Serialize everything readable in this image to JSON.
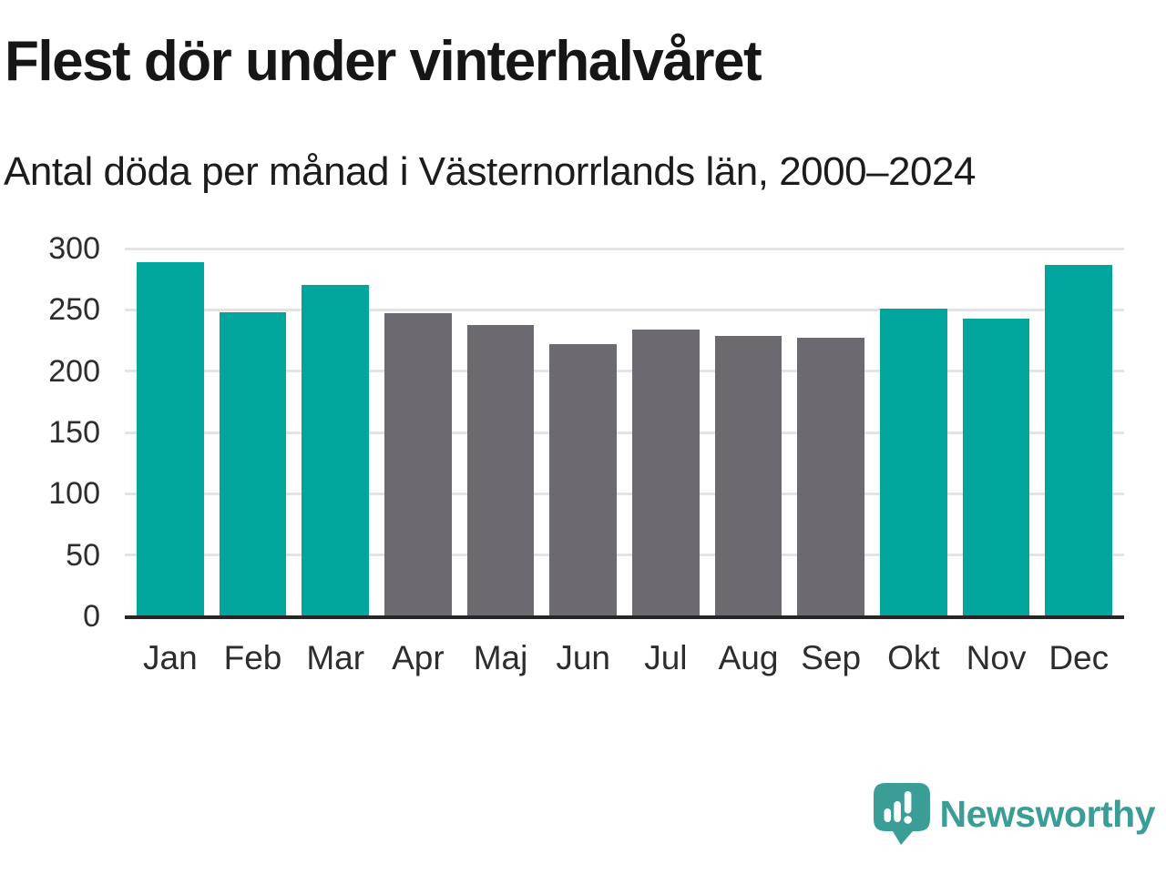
{
  "chart": {
    "title": "Flest dör under vinterhalvåret",
    "subtitle": "Antal döda per månad i Västernorrlands län, 2000–2024"
  },
  "chart_data": {
    "type": "bar",
    "title": "Flest dör under vinterhalvåret",
    "subtitle": "Antal döda per månad i Västernorrlands län, 2000–2024",
    "categories": [
      "Jan",
      "Feb",
      "Mar",
      "Apr",
      "Maj",
      "Jun",
      "Jul",
      "Aug",
      "Sep",
      "Okt",
      "Nov",
      "Dec"
    ],
    "values": [
      289,
      248,
      270,
      247,
      238,
      222,
      234,
      229,
      227,
      251,
      243,
      287
    ],
    "bar_color_keys": [
      "winter",
      "winter",
      "winter",
      "summer",
      "summer",
      "summer",
      "summer",
      "summer",
      "summer",
      "winter",
      "winter",
      "winter"
    ],
    "colors": {
      "winter": "#00a69e",
      "summer": "#6c6a70"
    },
    "xlabel": "",
    "ylabel": "",
    "ylim": [
      0,
      300
    ],
    "yticks": [
      0,
      50,
      100,
      150,
      200,
      250,
      300
    ],
    "grid": "horizontal",
    "legend": "none",
    "gridline_color": "#e4e4e4",
    "axis_line_color": "#262626"
  },
  "branding": {
    "logo_label": "Newsworthy",
    "logo_color": "#3a9e96",
    "logo_icon": "speech-bubble-bar-chart-icon"
  }
}
